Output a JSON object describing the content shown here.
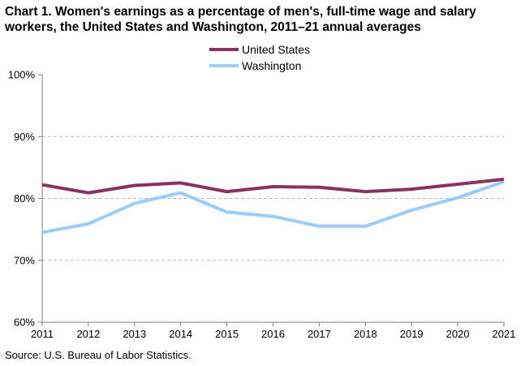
{
  "title_line1": "Chart 1. Women's earnings as a percentage of men's, full-time wage and salary",
  "title_line2": "workers, the United States and Washington, 2011–21 annual averages",
  "source": "Source:  U.S. Bureau of Labor Statistics.",
  "chart_data": {
    "type": "line",
    "title": "Chart 1. Women's earnings as a percentage of men's, full-time wage and salary workers, the United States and Washington, 2011–21 annual averages",
    "x": [
      "2011",
      "2012",
      "2013",
      "2014",
      "2015",
      "2016",
      "2017",
      "2018",
      "2019",
      "2020",
      "2021"
    ],
    "ylim": [
      60,
      100
    ],
    "yticks": [
      60,
      70,
      80,
      90,
      100
    ],
    "ytick_labels": [
      "60%",
      "70%",
      "80%",
      "90%",
      "100%"
    ],
    "xlabel": "",
    "ylabel": "",
    "grid": "horizontal dashed",
    "legend_position": "top-center",
    "series": [
      {
        "name": "United States",
        "color": "#8b3160",
        "values": [
          82.2,
          80.9,
          82.1,
          82.5,
          81.1,
          81.9,
          81.8,
          81.1,
          81.5,
          82.3,
          83.1
        ]
      },
      {
        "name": "Washington",
        "color": "#99ccff",
        "values": [
          74.5,
          75.9,
          79.2,
          80.9,
          77.8,
          77.1,
          75.5,
          75.5,
          78.1,
          80.1,
          82.7
        ]
      }
    ]
  }
}
